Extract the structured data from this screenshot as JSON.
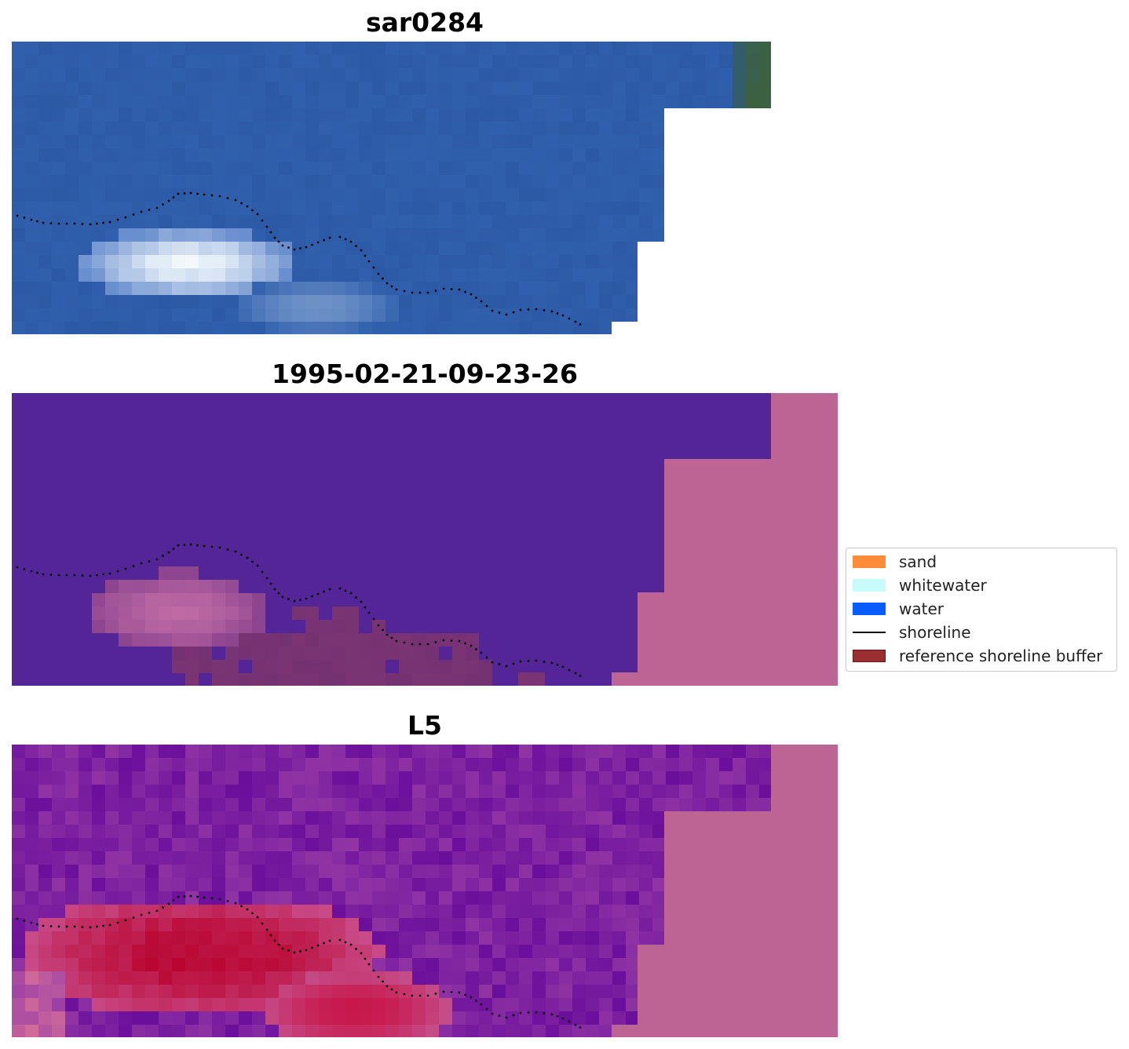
{
  "panels": [
    {
      "title": "sar0284",
      "kind": "rgb"
    },
    {
      "title": "1995-02-21-09-23-26",
      "kind": "classification"
    },
    {
      "title": "L5",
      "kind": "index"
    }
  ],
  "legend": {
    "items": [
      {
        "label": "sand",
        "color": "#ff8c3a",
        "type": "patch"
      },
      {
        "label": "whitewater",
        "color": "#c8fcfc",
        "type": "patch"
      },
      {
        "label": "water",
        "color": "#0a5cff",
        "type": "patch"
      },
      {
        "label": "shoreline",
        "color": "#000000",
        "type": "line"
      },
      {
        "label": "reference shoreline buffer",
        "color": "#9b2f2f",
        "type": "patch"
      }
    ]
  },
  "colors": {
    "rgb_water": "#3060ad",
    "rgb_land": "#3c6140",
    "class_water": "#532596",
    "mask_nodata": "#bc6494",
    "whitewater_pink": "#b55494",
    "buffer_overlay": "#7a3474",
    "index_low": "#6a0e9c",
    "index_high": "#b8002a"
  }
}
